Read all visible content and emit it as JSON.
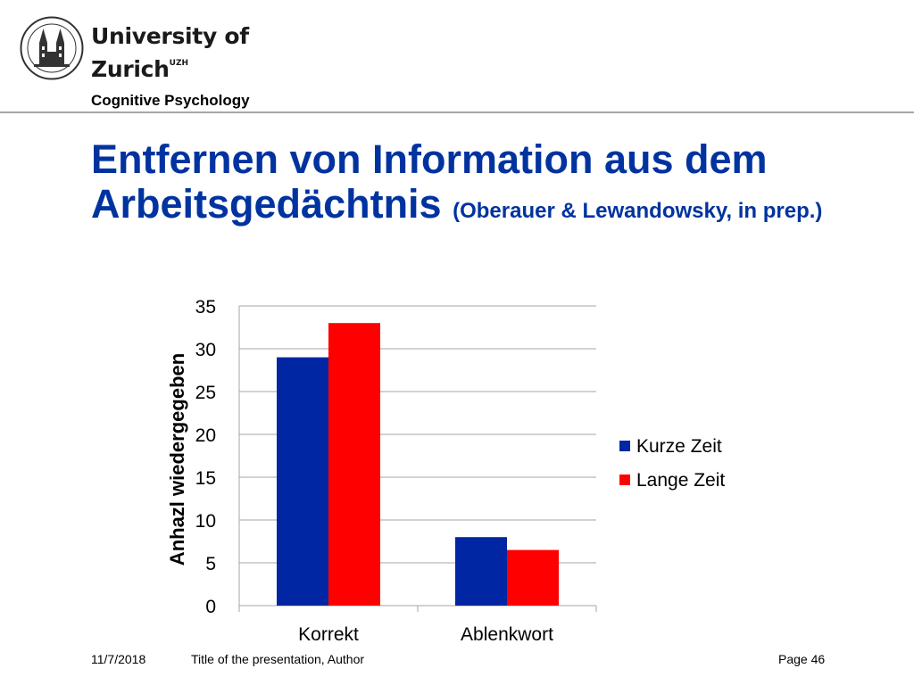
{
  "header": {
    "university_line1": "University of",
    "university_line2": "Zurich",
    "university_suffix": "UZH",
    "department": "Cognitive Psychology"
  },
  "slide": {
    "title_main": "Entfernen von Information aus dem Arbeitsgedächtnis",
    "title_citation": "(Oberauer & Lewandowsky, in prep.)"
  },
  "chart_data": {
    "type": "bar",
    "categories": [
      "Korrekt",
      "Ablenkwort"
    ],
    "series": [
      {
        "name": "Kurze Zeit",
        "values": [
          29,
          8
        ],
        "color": "#0026a3"
      },
      {
        "name": "Lange Zeit",
        "values": [
          33,
          6.5
        ],
        "color": "#ff0000"
      }
    ],
    "xlabel": "",
    "ylabel": "Anhazl wiedergegeben",
    "ylim": [
      0,
      35
    ],
    "yticks": [
      0,
      5,
      10,
      15,
      20,
      25,
      30,
      35
    ],
    "grid": true,
    "legend_position": "right"
  },
  "footer": {
    "date": "11/7/2018",
    "presentation": "Title of the presentation, Author",
    "page": "Page 46"
  }
}
